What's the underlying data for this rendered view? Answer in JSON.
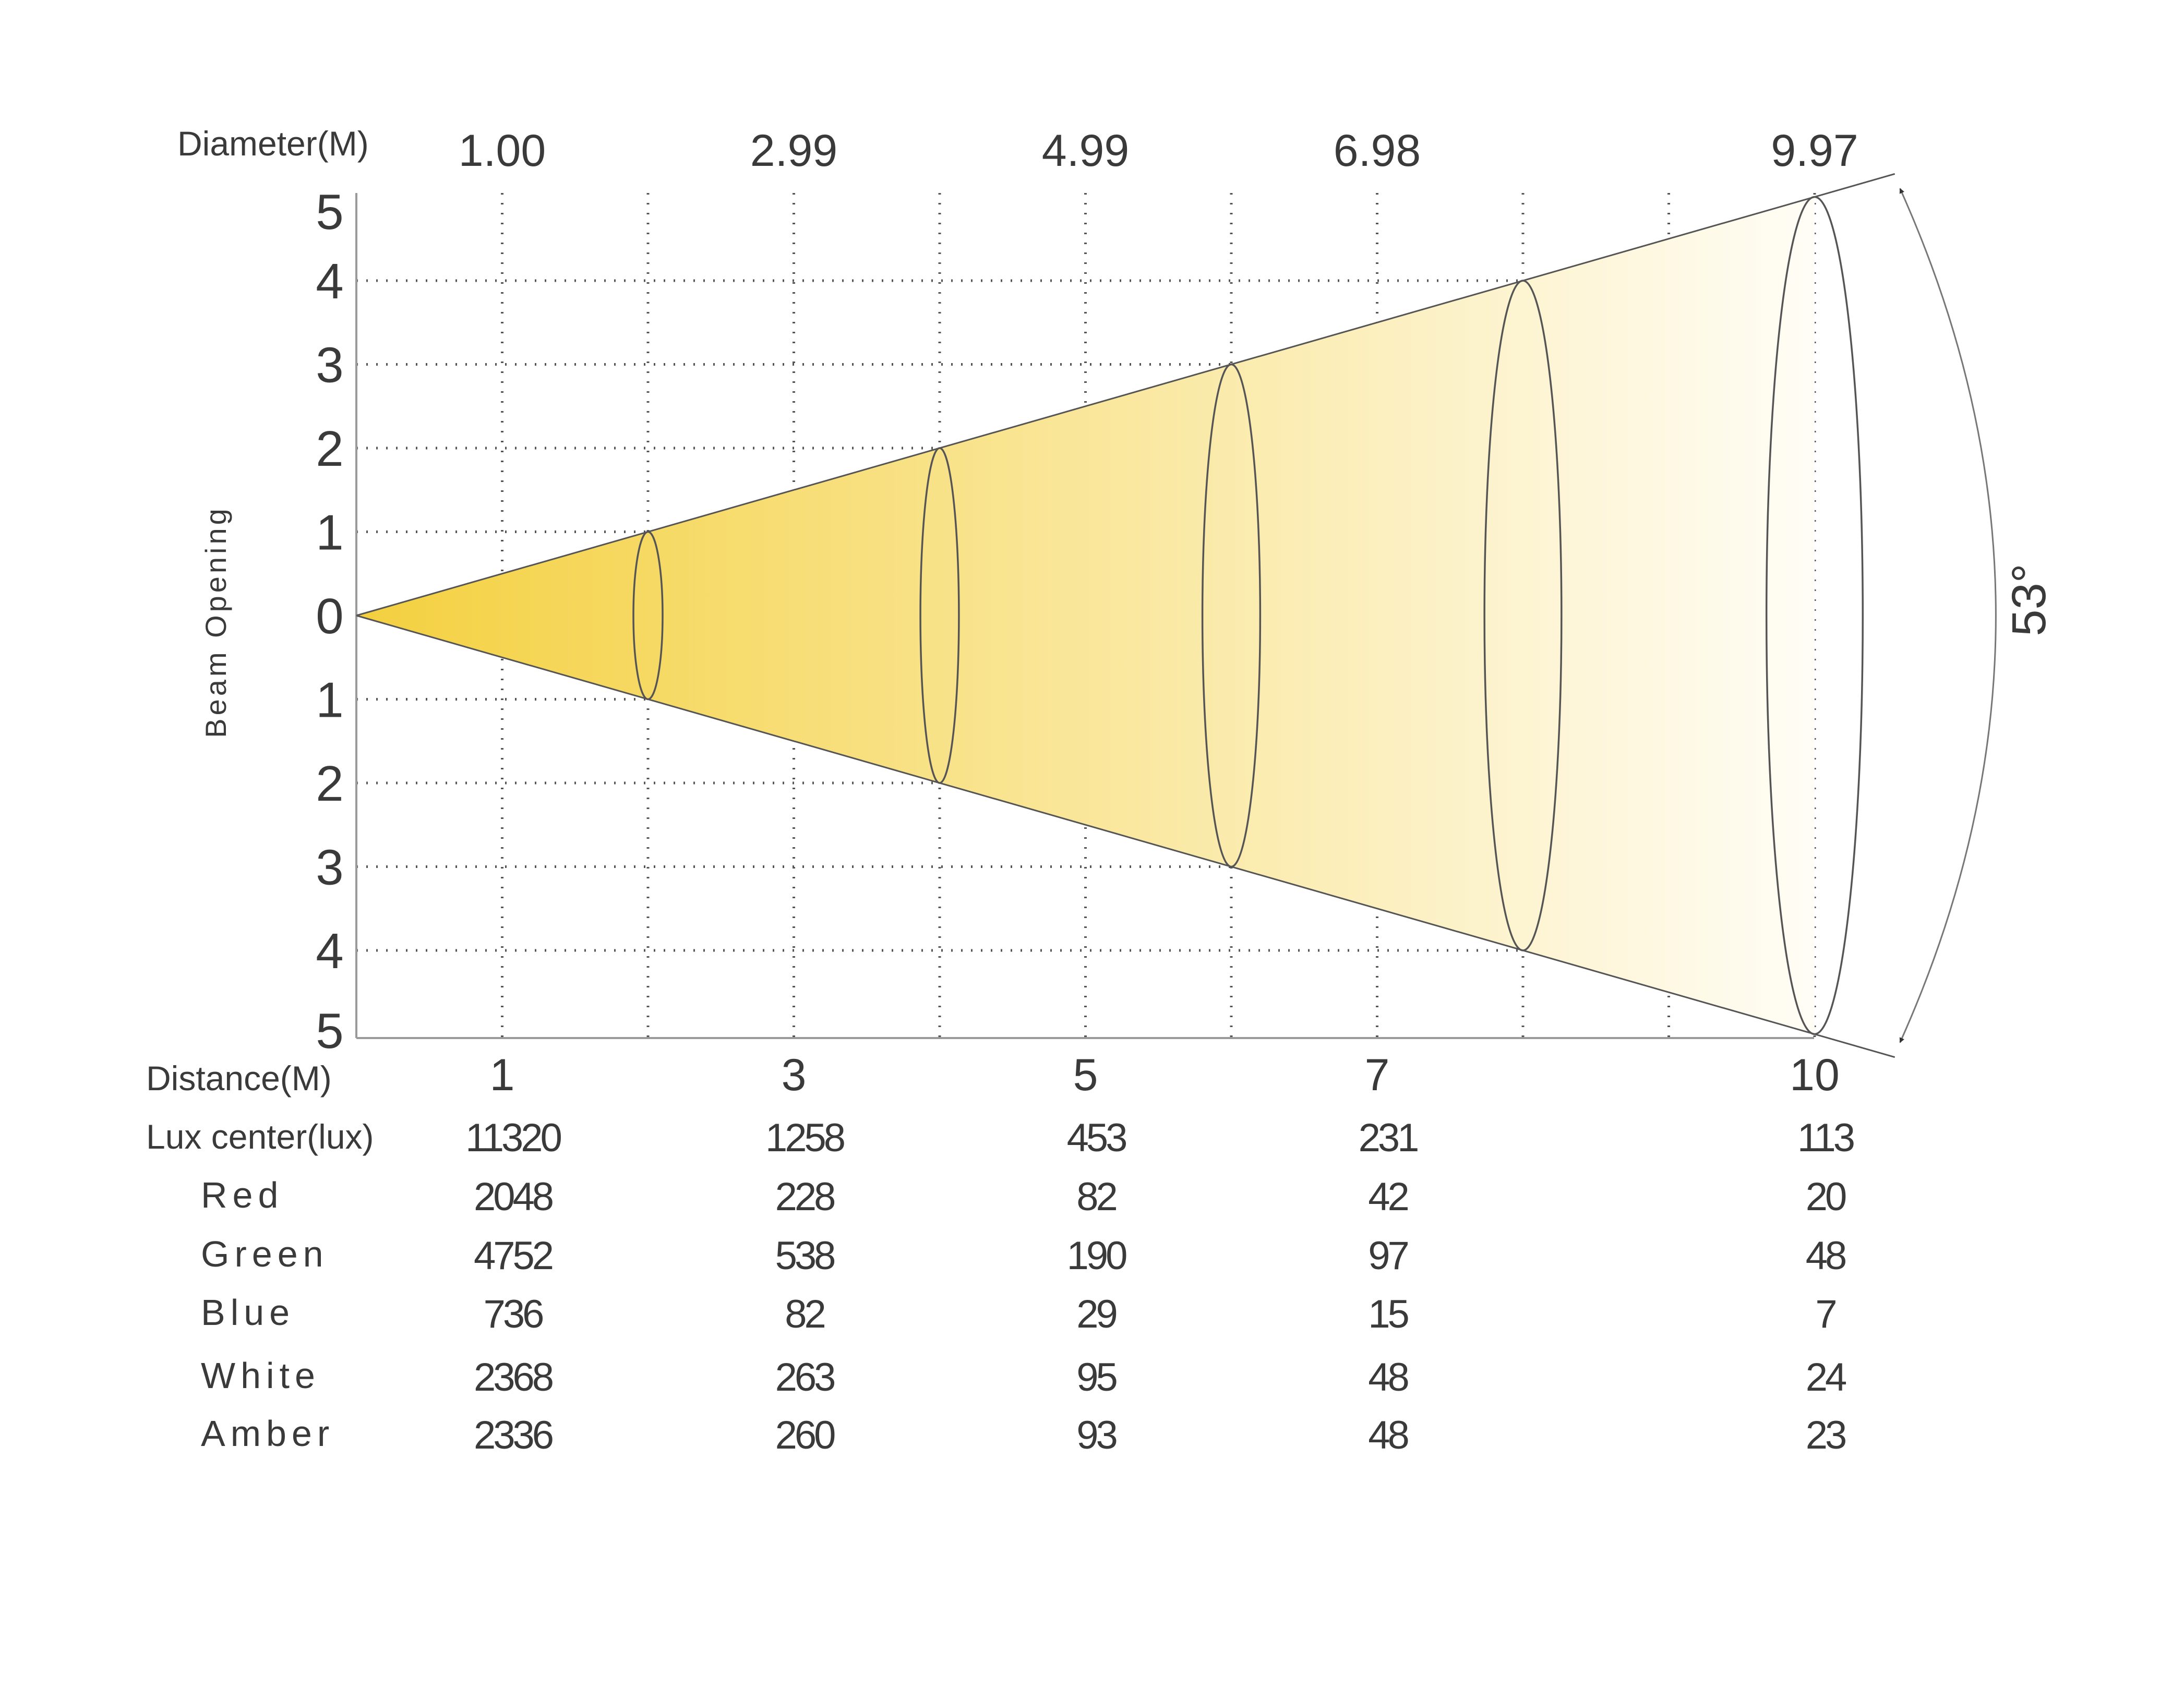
{
  "chart_data": {
    "type": "beam-angle",
    "beam_angle_label": "53°",
    "y_axis_label": "Beam Opening",
    "y_tick_labels": [
      "5",
      "4",
      "3",
      "2",
      "1",
      "0",
      "1",
      "2",
      "3",
      "4",
      "5"
    ],
    "diameter": {
      "label": "Diameter(M)",
      "values": [
        {
          "distance": 1,
          "text": "1.00"
        },
        {
          "distance": 3,
          "text": "2.99"
        },
        {
          "distance": 5,
          "text": "4.99"
        },
        {
          "distance": 7,
          "text": "6.98"
        },
        {
          "distance": 10,
          "text": "9.97"
        }
      ]
    },
    "distance": {
      "label": "Distance(M)",
      "values": [
        1,
        3,
        5,
        7,
        10
      ]
    },
    "ellipses_at_distance": [
      2,
      4,
      6,
      8,
      10
    ],
    "rows": [
      {
        "label": "Lux center(lux)",
        "values": [
          "11320",
          "1258",
          "453",
          "231",
          "113"
        ]
      },
      {
        "label": "Red",
        "values": [
          "2048",
          "228",
          "82",
          "42",
          "20"
        ]
      },
      {
        "label": "Green",
        "values": [
          "4752",
          "538",
          "190",
          "97",
          "48"
        ]
      },
      {
        "label": "Blue",
        "values": [
          "736",
          "82",
          "29",
          "15",
          "7"
        ]
      },
      {
        "label": "White",
        "values": [
          "2368",
          "263",
          "95",
          "48",
          "24"
        ]
      },
      {
        "label": "Amber",
        "values": [
          "2336",
          "260",
          "93",
          "48",
          "23"
        ]
      }
    ],
    "colors": {
      "beam_start": "#f4d03f",
      "beam_end": "#fffdf6",
      "grid": "#555555",
      "line": "#555555",
      "text": "#3a3a3a"
    }
  }
}
